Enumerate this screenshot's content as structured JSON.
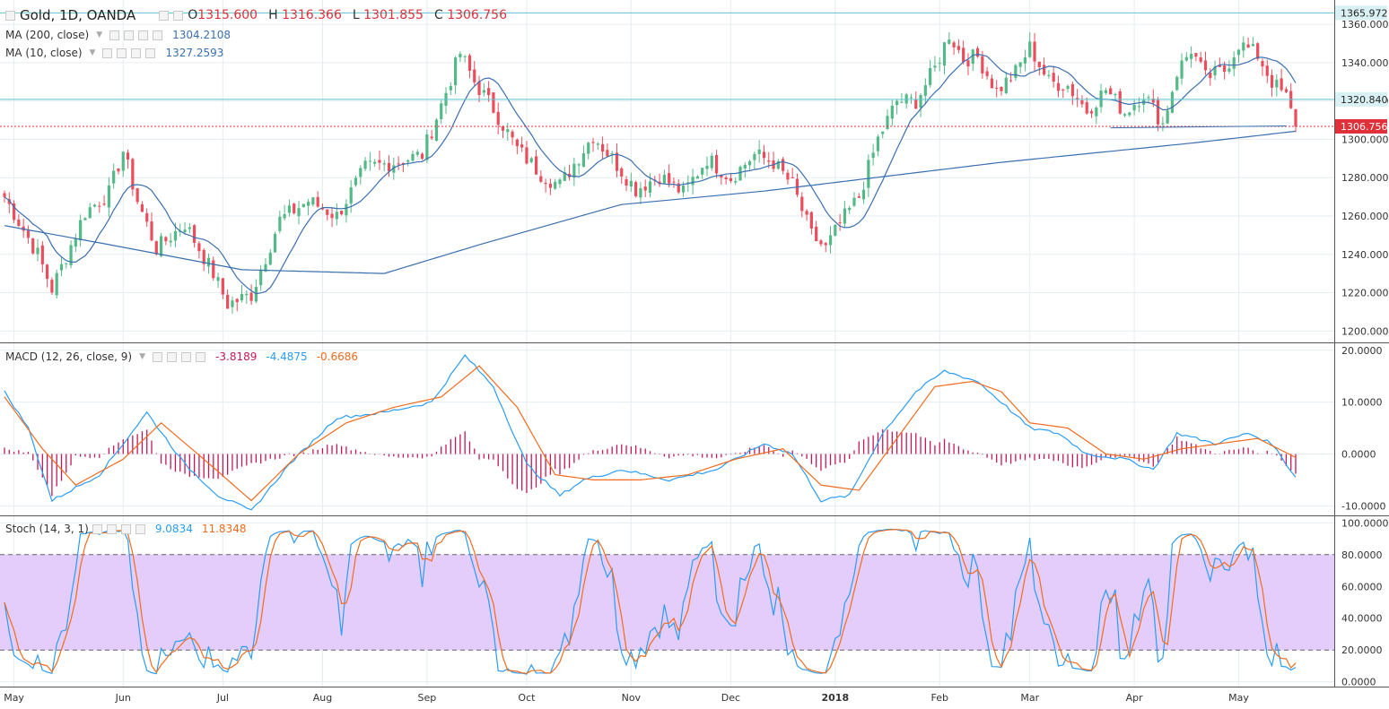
{
  "header": {
    "symbol": "Gold, 1D, OANDA",
    "o_label": "O",
    "o": "1315.600",
    "h_label": "H",
    "h": "1316.366",
    "l_label": "L",
    "l": "1301.855",
    "c_label": "C",
    "c": "1306.756"
  },
  "indicators": {
    "ma200": {
      "label": "MA (200, close)",
      "value": "1304.2108"
    },
    "ma10": {
      "label": "MA (10, close)",
      "value": "1327.2593"
    },
    "macd": {
      "label": "MACD (12, 26, close, 9)",
      "hist": "-3.8189",
      "macd": "-4.4875",
      "signal": "-0.6686"
    },
    "stoch": {
      "label": "Stoch (14, 3, 1)",
      "k": "9.0834",
      "d": "11.8348"
    }
  },
  "colors": {
    "up": "#53b987",
    "down": "#eb4d5c",
    "ma": "#3a6fb0",
    "macd": "#2a9df4",
    "signal": "#f26b1d",
    "hist": "#c2185b",
    "stoch_band": "#e4cdfa",
    "hline": "#5bc4d1",
    "price_tag": "#e0303a"
  },
  "chart_data": [
    {
      "type": "candlestick",
      "title": "Gold, 1D, OANDA",
      "ylim": [
        1195,
        1368
      ],
      "x_ticks": [
        "May",
        "Jun",
        "Jul",
        "Aug",
        "Sep",
        "Oct",
        "Nov",
        "Dec",
        "2018",
        "Feb",
        "Mar",
        "Apr",
        "May"
      ],
      "y_ticks": [
        "1360.000",
        "1340.000",
        "1320.000",
        "1300.000",
        "1280.000",
        "1260.000",
        "1240.000",
        "1220.000",
        "1200.000"
      ],
      "price_tags": [
        "1365.972",
        "1320.840",
        "1306.756"
      ],
      "last_close": 1306.756,
      "horizontal_lines": [
        1365.972,
        1320.84
      ],
      "close_anchors": [
        [
          0,
          1270
        ],
        [
          7,
          1240
        ],
        [
          10,
          1222
        ],
        [
          17,
          1262
        ],
        [
          22,
          1272
        ],
        [
          25,
          1294
        ],
        [
          28,
          1268
        ],
        [
          32,
          1243
        ],
        [
          38,
          1256
        ],
        [
          44,
          1230
        ],
        [
          47,
          1214
        ],
        [
          52,
          1219
        ],
        [
          58,
          1258
        ],
        [
          64,
          1268
        ],
        [
          70,
          1260
        ],
        [
          76,
          1285
        ],
        [
          82,
          1288
        ],
        [
          88,
          1292
        ],
        [
          92,
          1318
        ],
        [
          96,
          1345
        ],
        [
          99,
          1330
        ],
        [
          103,
          1316
        ],
        [
          108,
          1295
        ],
        [
          113,
          1282
        ],
        [
          117,
          1276
        ],
        [
          121,
          1291
        ],
        [
          124,
          1302
        ],
        [
          128,
          1290
        ],
        [
          133,
          1274
        ],
        [
          138,
          1281
        ],
        [
          143,
          1272
        ],
        [
          148,
          1290
        ],
        [
          153,
          1280
        ],
        [
          158,
          1292
        ],
        [
          162,
          1288
        ],
        [
          166,
          1276
        ],
        [
          170,
          1250
        ],
        [
          173,
          1243
        ],
        [
          176,
          1256
        ],
        [
          180,
          1270
        ],
        [
          184,
          1300
        ],
        [
          188,
          1320
        ],
        [
          192,
          1320
        ],
        [
          196,
          1337
        ],
        [
          199,
          1355
        ],
        [
          202,
          1342
        ],
        [
          205,
          1343
        ],
        [
          209,
          1325
        ],
        [
          213,
          1335
        ],
        [
          216,
          1348
        ],
        [
          220,
          1330
        ],
        [
          224,
          1328
        ],
        [
          228,
          1315
        ],
        [
          232,
          1326
        ],
        [
          236,
          1314
        ],
        [
          240,
          1324
        ],
        [
          244,
          1308
        ],
        [
          247,
          1335
        ],
        [
          250,
          1347
        ],
        [
          253,
          1332
        ],
        [
          257,
          1336
        ],
        [
          260,
          1350
        ],
        [
          264,
          1344
        ],
        [
          267,
          1330
        ],
        [
          270,
          1322
        ],
        [
          272,
          1306.756
        ]
      ],
      "ma200_anchors": [
        [
          0,
          1255
        ],
        [
          20,
          1246
        ],
        [
          50,
          1232
        ],
        [
          80,
          1230
        ],
        [
          100,
          1245
        ],
        [
          130,
          1266
        ],
        [
          160,
          1273
        ],
        [
          180,
          1279
        ],
        [
          210,
          1288
        ],
        [
          230,
          1293
        ],
        [
          250,
          1298
        ],
        [
          272,
          1304.21
        ]
      ],
      "ma10_period": 10
    },
    {
      "type": "macd",
      "title": "MACD (12, 26, close, 9)",
      "ylim": [
        -11.5,
        21
      ],
      "y_ticks": [
        "20.0000",
        "10.0000",
        "0.0000",
        "-10.0000"
      ],
      "macd_anchors": [
        [
          0,
          12
        ],
        [
          5,
          5
        ],
        [
          10,
          -9
        ],
        [
          20,
          -4
        ],
        [
          30,
          8
        ],
        [
          38,
          -2
        ],
        [
          45,
          -8
        ],
        [
          52,
          -11
        ],
        [
          60,
          -2
        ],
        [
          70,
          7
        ],
        [
          80,
          8
        ],
        [
          90,
          10
        ],
        [
          97,
          19
        ],
        [
          103,
          13
        ],
        [
          110,
          -2
        ],
        [
          117,
          -8
        ],
        [
          122,
          -5
        ],
        [
          130,
          -3
        ],
        [
          140,
          -5
        ],
        [
          150,
          -3
        ],
        [
          160,
          2
        ],
        [
          166,
          0
        ],
        [
          172,
          -9
        ],
        [
          178,
          -8
        ],
        [
          185,
          4
        ],
        [
          192,
          12
        ],
        [
          198,
          16
        ],
        [
          205,
          14
        ],
        [
          210,
          10
        ],
        [
          216,
          5
        ],
        [
          222,
          4
        ],
        [
          228,
          0
        ],
        [
          236,
          -1
        ],
        [
          242,
          -3
        ],
        [
          247,
          4
        ],
        [
          255,
          2
        ],
        [
          262,
          4
        ],
        [
          267,
          2
        ],
        [
          272,
          -4.49
        ]
      ],
      "signal_anchors": [
        [
          0,
          11
        ],
        [
          8,
          1
        ],
        [
          15,
          -6
        ],
        [
          25,
          -1
        ],
        [
          33,
          6
        ],
        [
          42,
          -1
        ],
        [
          52,
          -9
        ],
        [
          62,
          0
        ],
        [
          72,
          6
        ],
        [
          82,
          9
        ],
        [
          92,
          11
        ],
        [
          100,
          17
        ],
        [
          108,
          9
        ],
        [
          116,
          -4
        ],
        [
          124,
          -5
        ],
        [
          134,
          -5
        ],
        [
          144,
          -4
        ],
        [
          154,
          -1
        ],
        [
          164,
          1
        ],
        [
          172,
          -6
        ],
        [
          180,
          -7
        ],
        [
          188,
          3
        ],
        [
          196,
          13
        ],
        [
          204,
          14
        ],
        [
          210,
          12
        ],
        [
          216,
          6
        ],
        [
          224,
          5
        ],
        [
          232,
          0
        ],
        [
          240,
          -1
        ],
        [
          248,
          1
        ],
        [
          256,
          2
        ],
        [
          264,
          3
        ],
        [
          272,
          -0.67
        ]
      ]
    },
    {
      "type": "stochastic",
      "title": "Stoch (14, 3, 1)",
      "ylim": [
        -3,
        103
      ],
      "band": [
        20,
        80
      ],
      "y_ticks": [
        "100.0000",
        "80.0000",
        "60.0000",
        "40.0000",
        "20.0000",
        "0.0000"
      ],
      "k_last": 9.0834,
      "d_last": 11.8348
    }
  ]
}
